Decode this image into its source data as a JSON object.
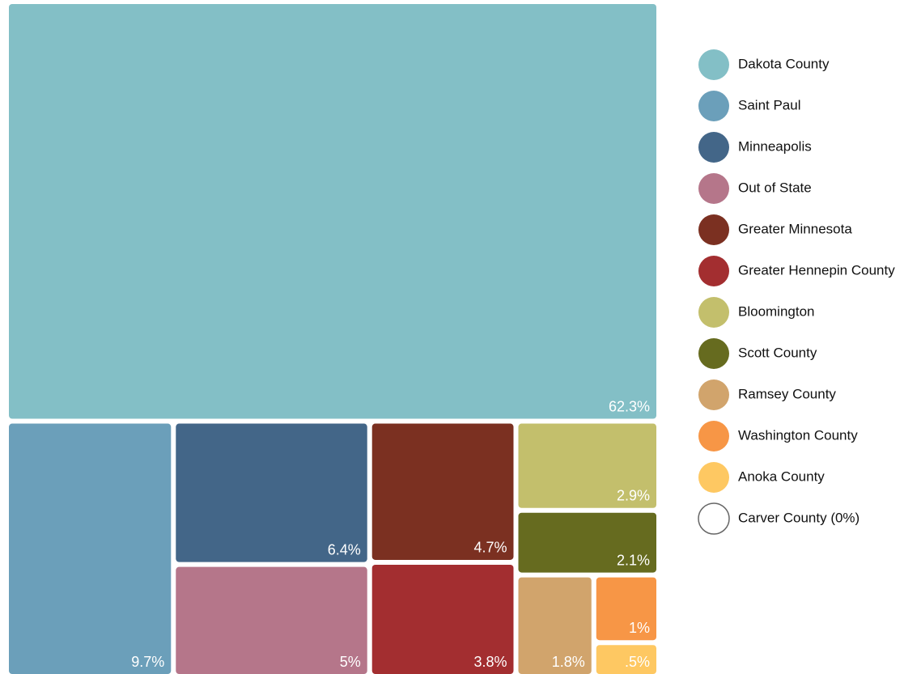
{
  "chart_data": {
    "type": "treemap",
    "categories": [
      "Dakota County",
      "Saint Paul",
      "Minneapolis",
      "Out of State",
      "Greater Minnesota",
      "Greater Hennepin County",
      "Bloomington",
      "Scott County",
      "Ramsey County",
      "Washington County",
      "Anoka County",
      "Carver County (0%)"
    ],
    "values": [
      62.3,
      9.7,
      6.4,
      5,
      4.7,
      3.8,
      2.9,
      2.1,
      1.8,
      1,
      0.5,
      0
    ],
    "value_labels": [
      "62.3%",
      "9.7%",
      "6.4%",
      "5%",
      "4.7%",
      "3.8%",
      "2.9%",
      "2.1%",
      "1.8%",
      "1%",
      ".5%",
      null
    ],
    "colors": [
      "#83bfc6",
      "#6b9fba",
      "#436688",
      "#b5768a",
      "#7b3021",
      "#a32e30",
      "#c3bf6c",
      "#666b1f",
      "#d1a46c",
      "#f79646",
      "#fec862",
      "#ffffff"
    ],
    "legend": "right"
  }
}
